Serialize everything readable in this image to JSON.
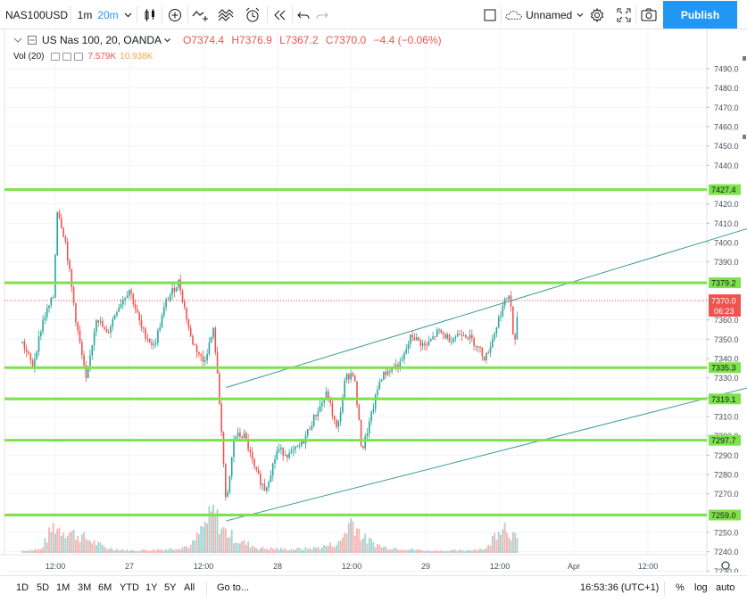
{
  "toolbar": {
    "symbol": "NAS100USD",
    "interval_1": "1m",
    "interval_2": "20m",
    "layout_name": "Unnamed",
    "publish_label": "Publish"
  },
  "legend": {
    "title": "US Nas 100, 20, OANDA",
    "open": "O7374.4",
    "high": "H7376.9",
    "low": "L7367.2",
    "close": "C7370.0",
    "change": "−4.4 (−0.06%)",
    "vol_label": "Vol (20)",
    "vol_value_1": "7.579K",
    "vol_value_2": "10.938K"
  },
  "colors": {
    "up": "#26a69a",
    "down": "#ef5350",
    "level": "#7ee24a",
    "channel": "#3d9a96",
    "accent": "#2196f3"
  },
  "price_axis": {
    "ticks": [
      "7490.0",
      "7480.0",
      "7470.0",
      "7460.0",
      "7450.0",
      "7440.0",
      "7420.0",
      "7410.0",
      "7400.0",
      "7390.0",
      "7360.0",
      "7350.0",
      "7340.0",
      "7330.0",
      "7310.0",
      "7300.0",
      "7290.0",
      "7280.0",
      "7270.0",
      "7250.0",
      "7240.0",
      "7230.0",
      "7220.0"
    ],
    "level_labels": [
      "7427.4",
      "7379.2",
      "7335.3",
      "7319.1",
      "7297.7",
      "7259.0"
    ],
    "last_price": "7370.0",
    "countdown": "06:23"
  },
  "time_axis": {
    "labels": [
      "12:00",
      "27",
      "12:00",
      "28",
      "12:00",
      "29",
      "12:00",
      "Apr",
      "12:00"
    ]
  },
  "bottom": {
    "ranges": [
      "1D",
      "5D",
      "1M",
      "3M",
      "6M",
      "YTD",
      "1Y",
      "5Y",
      "All"
    ],
    "goto": "Go to...",
    "clock": "16:53:36 (UTC+1)",
    "percent": "%",
    "log": "log",
    "auto": "auto"
  },
  "chart_data": {
    "type": "candlestick",
    "symbol": "US Nas 100, 20, OANDA",
    "ylim": [
      7215,
      7495
    ],
    "horizontal_levels": [
      7427.4,
      7379.2,
      7335.3,
      7319.1,
      7297.7,
      7259.0
    ],
    "last_price": 7370.0,
    "price_path": [
      {
        "t": "26 06:40",
        "p": 7348
      },
      {
        "t": "26 08:20",
        "p": 7336
      },
      {
        "t": "26 10:00",
        "p": 7360
      },
      {
        "t": "26 11:40",
        "p": 7372
      },
      {
        "t": "26 12:20",
        "p": 7418
      },
      {
        "t": "26 13:40",
        "p": 7400
      },
      {
        "t": "26 15:20",
        "p": 7360
      },
      {
        "t": "26 17:00",
        "p": 7328
      },
      {
        "t": "26 18:40",
        "p": 7362
      },
      {
        "t": "26 20:20",
        "p": 7352
      },
      {
        "t": "26 22:00",
        "p": 7366
      },
      {
        "t": "27 00:00",
        "p": 7376
      },
      {
        "t": "27 02:00",
        "p": 7355
      },
      {
        "t": "27 04:00",
        "p": 7346
      },
      {
        "t": "27 06:00",
        "p": 7370
      },
      {
        "t": "27 08:00",
        "p": 7380
      },
      {
        "t": "27 10:00",
        "p": 7350
      },
      {
        "t": "27 12:00",
        "p": 7338
      },
      {
        "t": "27 13:40",
        "p": 7355
      },
      {
        "t": "27 15:00",
        "p": 7300
      },
      {
        "t": "27 15:40",
        "p": 7262
      },
      {
        "t": "27 17:00",
        "p": 7300
      },
      {
        "t": "27 18:40",
        "p": 7300
      },
      {
        "t": "27 20:20",
        "p": 7282
      },
      {
        "t": "27 22:00",
        "p": 7272
      },
      {
        "t": "28 00:00",
        "p": 7293
      },
      {
        "t": "28 02:00",
        "p": 7290
      },
      {
        "t": "28 04:00",
        "p": 7296
      },
      {
        "t": "28 06:00",
        "p": 7310
      },
      {
        "t": "28 08:00",
        "p": 7322
      },
      {
        "t": "28 09:40",
        "p": 7302
      },
      {
        "t": "28 11:00",
        "p": 7330
      },
      {
        "t": "28 12:20",
        "p": 7333
      },
      {
        "t": "28 13:40",
        "p": 7292
      },
      {
        "t": "28 15:00",
        "p": 7308
      },
      {
        "t": "28 16:40",
        "p": 7330
      },
      {
        "t": "28 18:20",
        "p": 7335
      },
      {
        "t": "28 20:00",
        "p": 7337
      },
      {
        "t": "28 21:40",
        "p": 7352
      },
      {
        "t": "29 00:00",
        "p": 7346
      },
      {
        "t": "29 02:00",
        "p": 7354
      },
      {
        "t": "29 04:00",
        "p": 7350
      },
      {
        "t": "29 06:00",
        "p": 7354
      },
      {
        "t": "29 08:00",
        "p": 7348
      },
      {
        "t": "29 09:40",
        "p": 7340
      },
      {
        "t": "29 11:00",
        "p": 7352
      },
      {
        "t": "29 12:20",
        "p": 7366
      },
      {
        "t": "29 13:40",
        "p": 7374
      },
      {
        "t": "29 14:20",
        "p": 7342
      },
      {
        "t": "29 15:00",
        "p": 7370
      }
    ],
    "volume_path": [
      {
        "t": "26 06:40",
        "v": 2
      },
      {
        "t": "26 09:40",
        "v": 3
      },
      {
        "t": "26 11:40",
        "v": 22
      },
      {
        "t": "26 14:00",
        "v": 18
      },
      {
        "t": "26 17:00",
        "v": 12
      },
      {
        "t": "26 20:20",
        "v": 4
      },
      {
        "t": "27 00:00",
        "v": 2
      },
      {
        "t": "27 06:00",
        "v": 3
      },
      {
        "t": "27 10:00",
        "v": 6
      },
      {
        "t": "27 13:40",
        "v": 34
      },
      {
        "t": "27 15:00",
        "v": 20
      },
      {
        "t": "27 17:40",
        "v": 10
      },
      {
        "t": "27 21:00",
        "v": 4
      },
      {
        "t": "28 02:00",
        "v": 3
      },
      {
        "t": "28 06:00",
        "v": 4
      },
      {
        "t": "28 10:00",
        "v": 8
      },
      {
        "t": "28 12:00",
        "v": 28
      },
      {
        "t": "28 14:00",
        "v": 12
      },
      {
        "t": "28 17:00",
        "v": 5
      },
      {
        "t": "29 00:00",
        "v": 2
      },
      {
        "t": "29 06:00",
        "v": 2
      },
      {
        "t": "29 10:00",
        "v": 4
      },
      {
        "t": "29 12:20",
        "v": 26
      },
      {
        "t": "29 14:00",
        "v": 16
      },
      {
        "t": "29 15:00",
        "v": 8
      }
    ],
    "trend_lines": [
      {
        "from": {
          "t": "27 15:40",
          "p": 7256
        },
        "to": {
          "t": "31 08:00",
          "p": 7328
        }
      },
      {
        "from": {
          "t": "27 15:40",
          "p": 7325
        },
        "to": {
          "t": "31 08:00",
          "p": 7411
        }
      }
    ],
    "x_tick_labels": [
      "12:00",
      "27",
      "12:00",
      "28",
      "12:00",
      "29",
      "12:00",
      "Apr",
      "12:00"
    ],
    "grid": true
  }
}
